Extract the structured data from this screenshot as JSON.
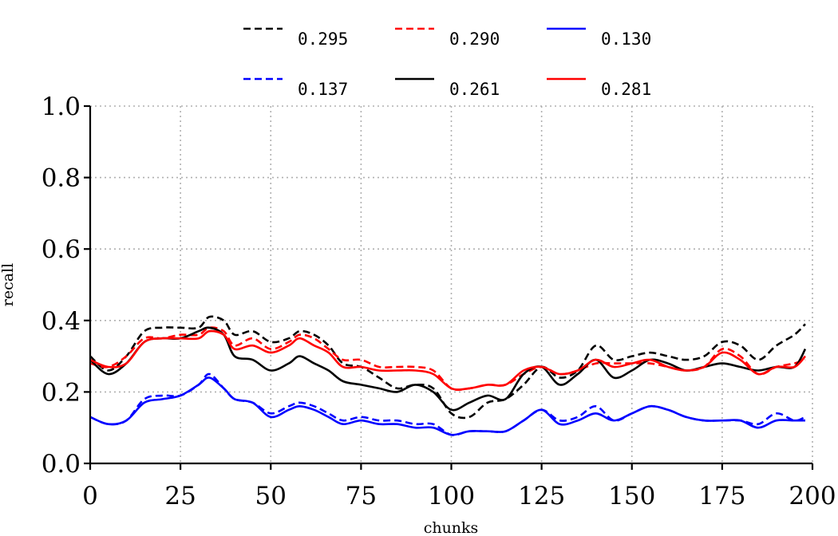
{
  "chart_data": {
    "type": "line",
    "title": "",
    "xlabel": "chunks",
    "ylabel": "recall",
    "xlim": [
      0,
      200
    ],
    "ylim": [
      0.0,
      1.0
    ],
    "xticks": [
      "0",
      "25",
      "50",
      "75",
      "100",
      "125",
      "150",
      "175",
      "200"
    ],
    "yticks": [
      "0.0",
      "0.2",
      "0.4",
      "0.6",
      "0.8",
      "1.0"
    ],
    "grid": true,
    "legend_position": "top-center",
    "x": [
      0,
      5,
      10,
      15,
      20,
      25,
      30,
      33,
      37,
      40,
      45,
      50,
      55,
      58,
      62,
      66,
      70,
      75,
      80,
      85,
      90,
      95,
      100,
      105,
      110,
      115,
      120,
      125,
      130,
      135,
      140,
      145,
      150,
      155,
      160,
      165,
      170,
      175,
      180,
      185,
      190,
      195,
      198
    ],
    "series": [
      {
        "name": "0.295",
        "color": "#000000",
        "style": "dashed",
        "values": [
          0.3,
          0.26,
          0.3,
          0.37,
          0.38,
          0.38,
          0.38,
          0.41,
          0.4,
          0.36,
          0.37,
          0.34,
          0.35,
          0.37,
          0.36,
          0.33,
          0.28,
          0.27,
          0.24,
          0.21,
          0.22,
          0.21,
          0.14,
          0.13,
          0.17,
          0.18,
          0.22,
          0.27,
          0.24,
          0.26,
          0.33,
          0.29,
          0.3,
          0.31,
          0.3,
          0.29,
          0.3,
          0.34,
          0.33,
          0.29,
          0.33,
          0.36,
          0.39
        ]
      },
      {
        "name": "0.290",
        "color": "#ff0000",
        "style": "dashed",
        "values": [
          0.28,
          0.27,
          0.3,
          0.35,
          0.35,
          0.36,
          0.36,
          0.38,
          0.37,
          0.33,
          0.35,
          0.32,
          0.34,
          0.36,
          0.35,
          0.32,
          0.29,
          0.29,
          0.27,
          0.27,
          0.27,
          0.26,
          0.21,
          0.21,
          0.22,
          0.22,
          0.25,
          0.27,
          0.25,
          0.26,
          0.28,
          0.28,
          0.28,
          0.28,
          0.27,
          0.26,
          0.27,
          0.32,
          0.3,
          0.25,
          0.27,
          0.28,
          0.29
        ]
      },
      {
        "name": "0.130",
        "color": "#0000ff",
        "style": "solid",
        "values": [
          0.13,
          0.11,
          0.12,
          0.17,
          0.18,
          0.19,
          0.22,
          0.24,
          0.21,
          0.18,
          0.17,
          0.13,
          0.15,
          0.16,
          0.15,
          0.13,
          0.11,
          0.12,
          0.11,
          0.11,
          0.1,
          0.1,
          0.08,
          0.09,
          0.09,
          0.09,
          0.12,
          0.15,
          0.11,
          0.12,
          0.14,
          0.12,
          0.14,
          0.16,
          0.15,
          0.13,
          0.12,
          0.12,
          0.12,
          0.1,
          0.12,
          0.12,
          0.12
        ]
      },
      {
        "name": "0.137",
        "color": "#0000ff",
        "style": "dashed",
        "values": [
          0.13,
          0.11,
          0.12,
          0.18,
          0.19,
          0.19,
          0.22,
          0.25,
          0.21,
          0.18,
          0.17,
          0.14,
          0.16,
          0.17,
          0.16,
          0.14,
          0.12,
          0.13,
          0.12,
          0.12,
          0.11,
          0.11,
          0.08,
          0.09,
          0.09,
          0.09,
          0.12,
          0.15,
          0.12,
          0.13,
          0.16,
          0.12,
          0.14,
          0.16,
          0.15,
          0.13,
          0.12,
          0.12,
          0.12,
          0.11,
          0.14,
          0.12,
          0.13
        ]
      },
      {
        "name": "0.261",
        "color": "#000000",
        "style": "solid",
        "values": [
          0.29,
          0.25,
          0.28,
          0.34,
          0.35,
          0.35,
          0.37,
          0.38,
          0.36,
          0.3,
          0.29,
          0.26,
          0.28,
          0.3,
          0.28,
          0.26,
          0.23,
          0.22,
          0.21,
          0.2,
          0.22,
          0.2,
          0.15,
          0.17,
          0.19,
          0.18,
          0.25,
          0.27,
          0.22,
          0.25,
          0.29,
          0.24,
          0.26,
          0.29,
          0.28,
          0.26,
          0.27,
          0.28,
          0.27,
          0.26,
          0.27,
          0.27,
          0.32
        ]
      },
      {
        "name": "0.281",
        "color": "#ff0000",
        "style": "solid",
        "values": [
          0.29,
          0.27,
          0.28,
          0.34,
          0.35,
          0.35,
          0.35,
          0.37,
          0.36,
          0.32,
          0.33,
          0.31,
          0.33,
          0.35,
          0.33,
          0.31,
          0.27,
          0.27,
          0.26,
          0.26,
          0.26,
          0.25,
          0.21,
          0.21,
          0.22,
          0.22,
          0.26,
          0.27,
          0.25,
          0.26,
          0.29,
          0.27,
          0.28,
          0.29,
          0.27,
          0.26,
          0.27,
          0.31,
          0.29,
          0.25,
          0.27,
          0.27,
          0.3
        ]
      }
    ]
  }
}
